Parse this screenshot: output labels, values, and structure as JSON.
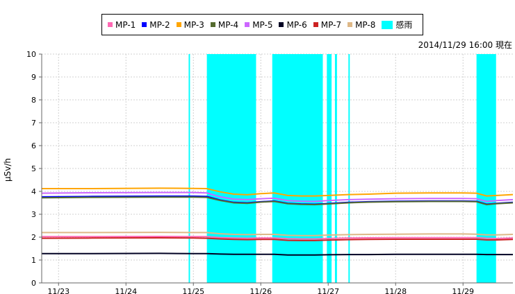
{
  "timestamp": "2014/11/29 16:00 現在",
  "legend": [
    {
      "name": "MP-1",
      "color": "#ff69b4"
    },
    {
      "name": "MP-2",
      "color": "#0000ff"
    },
    {
      "name": "MP-3",
      "color": "#ffa500"
    },
    {
      "name": "MP-4",
      "color": "#556b2f"
    },
    {
      "name": "MP-5",
      "color": "#cc66ff"
    },
    {
      "name": "MP-6",
      "color": "#000022"
    },
    {
      "name": "MP-7",
      "color": "#cc2222"
    },
    {
      "name": "MP-8",
      "color": "#deb887"
    },
    {
      "name": "感雨",
      "color": "#00ffff"
    }
  ],
  "chart_data": {
    "type": "line",
    "ylabel": "μSv/h",
    "ylim": [
      0,
      10
    ],
    "yticks": [
      0,
      1,
      2,
      3,
      4,
      5,
      6,
      7,
      8,
      9,
      10
    ],
    "xticks": [
      "11/23",
      "11/24",
      "11/25",
      "11/26",
      "11/27",
      "11/28",
      "11/29"
    ],
    "xlim": [
      22.75,
      29.74
    ],
    "grid": true,
    "x": [
      22.75,
      23.5,
      24.5,
      25.0,
      25.2,
      25.4,
      25.6,
      25.8,
      26.0,
      26.2,
      26.4,
      26.6,
      26.8,
      27.0,
      27.3,
      27.6,
      28.0,
      28.5,
      29.0,
      29.2,
      29.35,
      29.5,
      29.74
    ],
    "series": [
      {
        "name": "MP-1",
        "color": "#ff69b4",
        "values": [
          2.02,
          2.02,
          2.03,
          2.02,
          2.02,
          1.98,
          1.96,
          1.95,
          1.96,
          1.96,
          1.93,
          1.92,
          1.92,
          1.94,
          1.96,
          1.97,
          1.98,
          1.98,
          1.98,
          1.98,
          1.95,
          1.94,
          1.96
        ]
      },
      {
        "name": "MP-2",
        "color": "#0000ff",
        "values": [
          3.76,
          3.78,
          3.79,
          3.79,
          3.78,
          3.62,
          3.52,
          3.5,
          3.55,
          3.58,
          3.48,
          3.45,
          3.44,
          3.47,
          3.52,
          3.55,
          3.57,
          3.58,
          3.58,
          3.57,
          3.44,
          3.48,
          3.52
        ]
      },
      {
        "name": "MP-3",
        "color": "#ffa500",
        "values": [
          4.12,
          4.12,
          4.14,
          4.13,
          4.12,
          3.98,
          3.88,
          3.85,
          3.9,
          3.93,
          3.82,
          3.8,
          3.8,
          3.82,
          3.86,
          3.88,
          3.92,
          3.93,
          3.93,
          3.92,
          3.8,
          3.82,
          3.86
        ]
      },
      {
        "name": "MP-4",
        "color": "#556b2f",
        "values": [
          3.72,
          3.74,
          3.75,
          3.75,
          3.74,
          3.6,
          3.5,
          3.48,
          3.53,
          3.56,
          3.46,
          3.43,
          3.42,
          3.45,
          3.5,
          3.53,
          3.55,
          3.56,
          3.56,
          3.55,
          3.42,
          3.46,
          3.5
        ]
      },
      {
        "name": "MP-5",
        "color": "#cc66ff",
        "values": [
          3.92,
          3.94,
          3.95,
          3.95,
          3.93,
          3.76,
          3.66,
          3.64,
          3.68,
          3.7,
          3.6,
          3.57,
          3.56,
          3.6,
          3.64,
          3.66,
          3.68,
          3.69,
          3.69,
          3.68,
          3.56,
          3.6,
          3.64
        ]
      },
      {
        "name": "MP-6",
        "color": "#000022",
        "values": [
          1.28,
          1.28,
          1.29,
          1.28,
          1.28,
          1.26,
          1.25,
          1.25,
          1.25,
          1.25,
          1.22,
          1.22,
          1.22,
          1.23,
          1.24,
          1.24,
          1.25,
          1.25,
          1.25,
          1.25,
          1.24,
          1.24,
          1.24
        ]
      },
      {
        "name": "MP-7",
        "color": "#cc2222",
        "values": [
          1.95,
          1.96,
          1.97,
          1.96,
          1.95,
          1.92,
          1.9,
          1.89,
          1.9,
          1.9,
          1.86,
          1.85,
          1.85,
          1.87,
          1.89,
          1.9,
          1.91,
          1.91,
          1.91,
          1.91,
          1.88,
          1.88,
          1.9
        ]
      },
      {
        "name": "MP-8",
        "color": "#deb887",
        "values": [
          2.2,
          2.2,
          2.21,
          2.2,
          2.2,
          2.15,
          2.12,
          2.11,
          2.12,
          2.12,
          2.08,
          2.07,
          2.07,
          2.09,
          2.11,
          2.12,
          2.13,
          2.14,
          2.14,
          2.13,
          2.1,
          2.1,
          2.12
        ]
      }
    ],
    "rain_periods": [
      {
        "name": "感雨",
        "from": 24.93,
        "to": 24.95
      },
      {
        "name": "感雨",
        "from": 25.2,
        "to": 25.93
      },
      {
        "name": "感雨",
        "from": 26.17,
        "to": 26.92
      },
      {
        "name": "感雨",
        "from": 26.98,
        "to": 27.05
      },
      {
        "name": "感雨",
        "from": 27.1,
        "to": 27.13
      },
      {
        "name": "感雨",
        "from": 27.3,
        "to": 27.32
      },
      {
        "name": "感雨",
        "from": 29.2,
        "to": 29.49
      }
    ]
  }
}
